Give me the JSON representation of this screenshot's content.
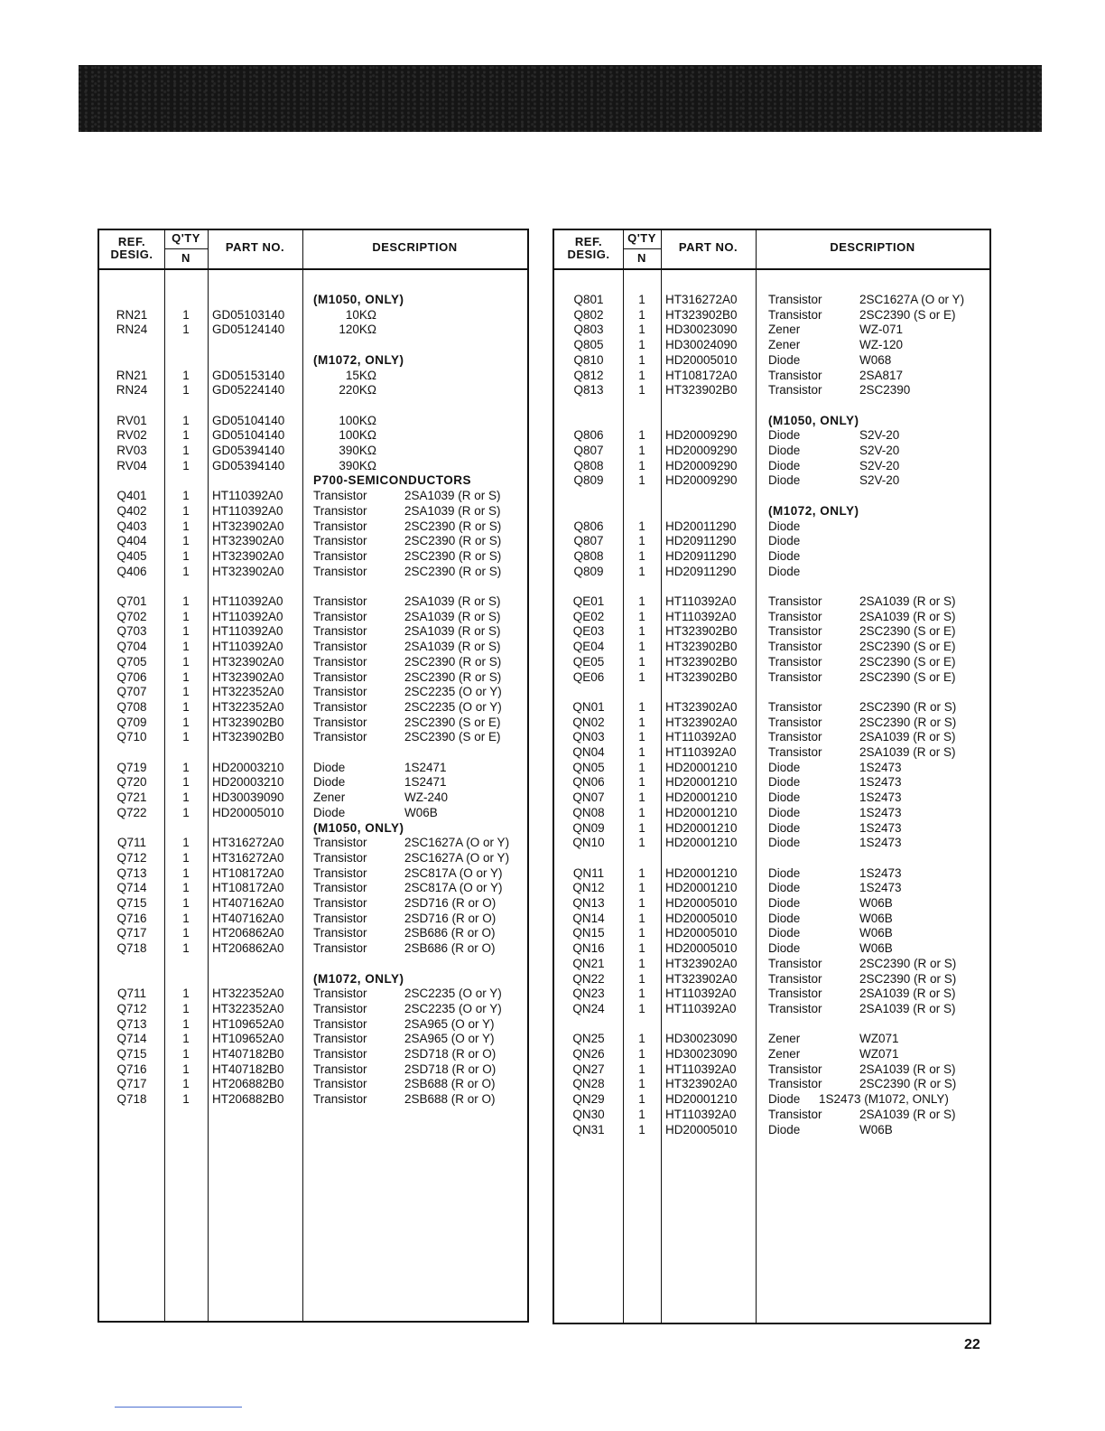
{
  "headers": {
    "ref": "REF.",
    "desig": "DESIG.",
    "qty": "Q'TY",
    "n": "N",
    "part": "PART NO.",
    "desc": "DESCRIPTION"
  },
  "page_number": "22",
  "left_rows": [
    {
      "h": "(M1050, ONLY)"
    },
    {
      "ref": "RN21",
      "qty": "1",
      "part": "GD05103140",
      "val": "10KΩ"
    },
    {
      "ref": "RN24",
      "qty": "1",
      "part": "GD05124140",
      "val": "120KΩ"
    },
    {},
    {
      "h": "(M1072, ONLY)"
    },
    {
      "ref": "RN21",
      "qty": "1",
      "part": "GD05153140",
      "val": "15KΩ"
    },
    {
      "ref": "RN24",
      "qty": "1",
      "part": "GD05224140",
      "val": "220KΩ"
    },
    {},
    {
      "ref": "RV01",
      "qty": "1",
      "part": "GD05104140",
      "val": "100KΩ"
    },
    {
      "ref": "RV02",
      "qty": "1",
      "part": "GD05104140",
      "val": "100KΩ"
    },
    {
      "ref": "RV03",
      "qty": "1",
      "part": "GD05394140",
      "val": "390KΩ"
    },
    {
      "ref": "RV04",
      "qty": "1",
      "part": "GD05394140",
      "val": "390KΩ"
    },
    {
      "h": "P700-SEMICONDUCTORS"
    },
    {
      "ref": "Q401",
      "qty": "1",
      "part": "HT110392A0",
      "type": "Transistor",
      "model": "2SA1039 (R or S)"
    },
    {
      "ref": "Q402",
      "qty": "1",
      "part": "HT110392A0",
      "type": "Transistor",
      "model": "2SA1039 (R or S)"
    },
    {
      "ref": "Q403",
      "qty": "1",
      "part": "HT323902A0",
      "type": "Transistor",
      "model": "2SC2390 (R or S)"
    },
    {
      "ref": "Q404",
      "qty": "1",
      "part": "HT323902A0",
      "type": "Transistor",
      "model": "2SC2390 (R or S)"
    },
    {
      "ref": "Q405",
      "qty": "1",
      "part": "HT323902A0",
      "type": "Transistor",
      "model": "2SC2390 (R or S)"
    },
    {
      "ref": "Q406",
      "qty": "1",
      "part": "HT323902A0",
      "type": "Transistor",
      "model": "2SC2390 (R or S)"
    },
    {},
    {
      "ref": "Q701",
      "qty": "1",
      "part": "HT110392A0",
      "type": "Transistor",
      "model": "2SA1039 (R or S)"
    },
    {
      "ref": "Q702",
      "qty": "1",
      "part": "HT110392A0",
      "type": "Transistor",
      "model": "2SA1039 (R or S)"
    },
    {
      "ref": "Q703",
      "qty": "1",
      "part": "HT110392A0",
      "type": "Transistor",
      "model": "2SA1039 (R or S)"
    },
    {
      "ref": "Q704",
      "qty": "1",
      "part": "HT110392A0",
      "type": "Transistor",
      "model": "2SA1039 (R or S)"
    },
    {
      "ref": "Q705",
      "qty": "1",
      "part": "HT323902A0",
      "type": "Transistor",
      "model": "2SC2390 (R or S)"
    },
    {
      "ref": "Q706",
      "qty": "1",
      "part": "HT323902A0",
      "type": "Transistor",
      "model": "2SC2390 (R or S)"
    },
    {
      "ref": "Q707",
      "qty": "1",
      "part": "HT322352A0",
      "type": "Transistor",
      "model": "2SC2235 (O or Y)"
    },
    {
      "ref": "Q708",
      "qty": "1",
      "part": "HT322352A0",
      "type": "Transistor",
      "model": "2SC2235 (O or Y)"
    },
    {
      "ref": "Q709",
      "qty": "1",
      "part": "HT323902B0",
      "type": "Transistor",
      "model": "2SC2390 (S or E)"
    },
    {
      "ref": "Q710",
      "qty": "1",
      "part": "HT323902B0",
      "type": "Transistor",
      "model": "2SC2390 (S or E)"
    },
    {},
    {
      "ref": "Q719",
      "qty": "1",
      "part": "HD20003210",
      "type": "Diode",
      "model": "1S2471"
    },
    {
      "ref": "Q720",
      "qty": "1",
      "part": "HD20003210",
      "type": "Diode",
      "model": "1S2471"
    },
    {
      "ref": "Q721",
      "qty": "1",
      "part": "HD30039090",
      "type": "Zener",
      "model": "WZ-240"
    },
    {
      "ref": "Q722",
      "qty": "1",
      "part": "HD20005010",
      "type": "Diode",
      "model": "W06B"
    },
    {
      "h": "(M1050, ONLY)"
    },
    {
      "ref": "Q711",
      "qty": "1",
      "part": "HT316272A0",
      "type": "Transistor",
      "model": "2SC1627A (O or Y)"
    },
    {
      "ref": "Q712",
      "qty": "1",
      "part": "HT316272A0",
      "type": "Transistor",
      "model": "2SC1627A (O or Y)"
    },
    {
      "ref": "Q713",
      "qty": "1",
      "part": "HT108172A0",
      "type": "Transistor",
      "model": "2SC817A (O or Y)"
    },
    {
      "ref": "Q714",
      "qty": "1",
      "part": "HT108172A0",
      "type": "Transistor",
      "model": "2SC817A (O or Y)"
    },
    {
      "ref": "Q715",
      "qty": "1",
      "part": "HT407162A0",
      "type": "Transistor",
      "model": "2SD716 (R or O)"
    },
    {
      "ref": "Q716",
      "qty": "1",
      "part": "HT407162A0",
      "type": "Transistor",
      "model": "2SD716 (R or O)"
    },
    {
      "ref": "Q717",
      "qty": "1",
      "part": "HT206862A0",
      "type": "Transistor",
      "model": "2SB686 (R or O)"
    },
    {
      "ref": "Q718",
      "qty": "1",
      "part": "HT206862A0",
      "type": "Transistor",
      "model": "2SB686 (R or O)"
    },
    {},
    {
      "h": "(M1072, ONLY)"
    },
    {
      "ref": "Q711",
      "qty": "1",
      "part": "HT322352A0",
      "type": "Transistor",
      "model": "2SC2235 (O or Y)"
    },
    {
      "ref": "Q712",
      "qty": "1",
      "part": "HT322352A0",
      "type": "Transistor",
      "model": "2SC2235 (O or Y)"
    },
    {
      "ref": "Q713",
      "qty": "1",
      "part": "HT109652A0",
      "type": "Transistor",
      "model": "2SA965 (O or Y)"
    },
    {
      "ref": "Q714",
      "qty": "1",
      "part": "HT109652A0",
      "type": "Transistor",
      "model": "2SA965 (O or Y)"
    },
    {
      "ref": "Q715",
      "qty": "1",
      "part": "HT407182B0",
      "type": "Transistor",
      "model": "2SD718 (R or O)"
    },
    {
      "ref": "Q716",
      "qty": "1",
      "part": "HT407182B0",
      "type": "Transistor",
      "model": "2SD718 (R or O)"
    },
    {
      "ref": "Q717",
      "qty": "1",
      "part": "HT206882B0",
      "type": "Transistor",
      "model": "2SB688 (R or O)"
    },
    {
      "ref": "Q718",
      "qty": "1",
      "part": "HT206882B0",
      "type": "Transistor",
      "model": "2SB688 (R or O)"
    }
  ],
  "right_rows": [
    {
      "ref": "Q801",
      "qty": "1",
      "part": "HT316272A0",
      "type": "Transistor",
      "model": "2SC1627A (O or Y)"
    },
    {
      "ref": "Q802",
      "qty": "1",
      "part": "HT323902B0",
      "type": "Transistor",
      "model": "2SC2390 (S or E)"
    },
    {
      "ref": "Q803",
      "qty": "1",
      "part": "HD30023090",
      "type": "Zener",
      "model": "WZ-071"
    },
    {
      "ref": "Q805",
      "qty": "1",
      "part": "HD30024090",
      "type": "Zener",
      "model": "WZ-120"
    },
    {
      "ref": "Q810",
      "qty": "1",
      "part": "HD20005010",
      "type": "Diode",
      "model": "W068"
    },
    {
      "ref": "Q812",
      "qty": "1",
      "part": "HT108172A0",
      "type": "Transistor",
      "model": "2SA817"
    },
    {
      "ref": "Q813",
      "qty": "1",
      "part": "HT323902B0",
      "type": "Transistor",
      "model": "2SC2390"
    },
    {},
    {
      "h": "(M1050, ONLY)"
    },
    {
      "ref": "Q806",
      "qty": "1",
      "part": "HD20009290",
      "type": "Diode",
      "model": "S2V-20"
    },
    {
      "ref": "Q807",
      "qty": "1",
      "part": "HD20009290",
      "type": "Diode",
      "model": "S2V-20"
    },
    {
      "ref": "Q808",
      "qty": "1",
      "part": "HD20009290",
      "type": "Diode",
      "model": "S2V-20"
    },
    {
      "ref": "Q809",
      "qty": "1",
      "part": "HD20009290",
      "type": "Diode",
      "model": "S2V-20"
    },
    {},
    {
      "h": "(M1072, ONLY)"
    },
    {
      "ref": "Q806",
      "qty": "1",
      "part": "HD20011290",
      "type": "Diode"
    },
    {
      "ref": "Q807",
      "qty": "1",
      "part": "HD20911290",
      "type": "Diode"
    },
    {
      "ref": "Q808",
      "qty": "1",
      "part": "HD20911290",
      "type": "Diode"
    },
    {
      "ref": "Q809",
      "qty": "1",
      "part": "HD20911290",
      "type": "Diode"
    },
    {},
    {
      "ref": "QE01",
      "qty": "1",
      "part": "HT110392A0",
      "type": "Transistor",
      "model": "2SA1039 (R or S)"
    },
    {
      "ref": "QE02",
      "qty": "1",
      "part": "HT110392A0",
      "type": "Transistor",
      "model": "2SA1039 (R or S)"
    },
    {
      "ref": "QE03",
      "qty": "1",
      "part": "HT323902B0",
      "type": "Transistor",
      "model": "2SC2390 (S or E)"
    },
    {
      "ref": "QE04",
      "qty": "1",
      "part": "HT323902B0",
      "type": "Transistor",
      "model": "2SC2390 (S or E)"
    },
    {
      "ref": "QE05",
      "qty": "1",
      "part": "HT323902B0",
      "type": "Transistor",
      "model": "2SC2390 (S or E)"
    },
    {
      "ref": "QE06",
      "qty": "1",
      "part": "HT323902B0",
      "type": "Transistor",
      "model": "2SC2390 (S or E)"
    },
    {},
    {
      "ref": "QN01",
      "qty": "1",
      "part": "HT323902A0",
      "type": "Transistor",
      "model": "2SC2390 (R or S)"
    },
    {
      "ref": "QN02",
      "qty": "1",
      "part": "HT323902A0",
      "type": "Transistor",
      "model": "2SC2390 (R or S)"
    },
    {
      "ref": "QN03",
      "qty": "1",
      "part": "HT110392A0",
      "type": "Transistor",
      "model": "2SA1039 (R or S)"
    },
    {
      "ref": "QN04",
      "qty": "1",
      "part": "HT110392A0",
      "type": "Transistor",
      "model": "2SA1039 (R or S)"
    },
    {
      "ref": "QN05",
      "qty": "1",
      "part": "HD20001210",
      "type": "Diode",
      "model": "1S2473"
    },
    {
      "ref": "QN06",
      "qty": "1",
      "part": "HD20001210",
      "type": "Diode",
      "model": "1S2473"
    },
    {
      "ref": "QN07",
      "qty": "1",
      "part": "HD20001210",
      "type": "Diode",
      "model": "1S2473"
    },
    {
      "ref": "QN08",
      "qty": "1",
      "part": "HD20001210",
      "type": "Diode",
      "model": "1S2473"
    },
    {
      "ref": "QN09",
      "qty": "1",
      "part": "HD20001210",
      "type": "Diode",
      "model": "1S2473"
    },
    {
      "ref": "QN10",
      "qty": "1",
      "part": "HD20001210",
      "type": "Diode",
      "model": "1S2473"
    },
    {},
    {
      "ref": "QN11",
      "qty": "1",
      "part": "HD20001210",
      "type": "Diode",
      "model": "1S2473"
    },
    {
      "ref": "QN12",
      "qty": "1",
      "part": "HD20001210",
      "type": "Diode",
      "model": "1S2473"
    },
    {
      "ref": "QN13",
      "qty": "1",
      "part": "HD20005010",
      "type": "Diode",
      "model": "W06B"
    },
    {
      "ref": "QN14",
      "qty": "1",
      "part": "HD20005010",
      "type": "Diode",
      "model": "W06B"
    },
    {
      "ref": "QN15",
      "qty": "1",
      "part": "HD20005010",
      "type": "Diode",
      "model": "W06B"
    },
    {
      "ref": "QN16",
      "qty": "1",
      "part": "HD20005010",
      "type": "Diode",
      "model": "W06B"
    },
    {
      "ref": "QN21",
      "qty": "1",
      "part": "HT323902A0",
      "type": "Transistor",
      "model": "2SC2390 (R or S)"
    },
    {
      "ref": "QN22",
      "qty": "1",
      "part": "HT323902A0",
      "type": "Transistor",
      "model": "2SC2390 (R or S)"
    },
    {
      "ref": "QN23",
      "qty": "1",
      "part": "HT110392A0",
      "type": "Transistor",
      "model": "2SA1039 (R or S)"
    },
    {
      "ref": "QN24",
      "qty": "1",
      "part": "HT110392A0",
      "type": "Transistor",
      "model": "2SA1039 (R or S)"
    },
    {},
    {
      "ref": "QN25",
      "qty": "1",
      "part": "HD30023090",
      "type": "Zener",
      "model": "WZ071"
    },
    {
      "ref": "QN26",
      "qty": "1",
      "part": "HD30023090",
      "type": "Zener",
      "model": "WZ071"
    },
    {
      "ref": "QN27",
      "qty": "1",
      "part": "HT110392A0",
      "type": "Transistor",
      "model": "2SA1039 (R or S)"
    },
    {
      "ref": "QN28",
      "qty": "1",
      "part": "HT323902A0",
      "type": "Transistor",
      "model": "2SC2390 (R or S)"
    },
    {
      "ref": "QN29",
      "qty": "1",
      "part": "HD20001210",
      "type": "Diode",
      "inline": "1S2473 (M1072, ONLY)"
    },
    {
      "ref": "QN30",
      "qty": "1",
      "part": "HT110392A0",
      "type": "Transistor",
      "model": "2SA1039 (R or S)"
    },
    {
      "ref": "QN31",
      "qty": "1",
      "part": "HD20005010",
      "type": "Diode",
      "model": "W06B"
    }
  ]
}
